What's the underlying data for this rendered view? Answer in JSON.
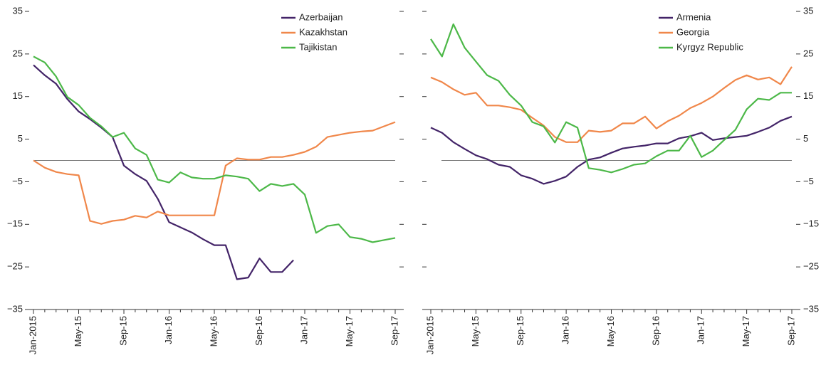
{
  "chart_data": [
    {
      "type": "line",
      "legend": "upper right",
      "yaxis_position": "left",
      "reference_line": 0,
      "categories": [
        "Jan-2015",
        null,
        null,
        null,
        "May-15",
        null,
        null,
        null,
        "Sep-15",
        null,
        null,
        null,
        "Jan-16",
        null,
        null,
        null,
        "May-16",
        null,
        null,
        null,
        "Sep-16",
        null,
        null,
        null,
        "Jan-17",
        null,
        null,
        null,
        "May-17",
        null,
        null,
        null,
        "Sep-17"
      ],
      "ylim": [
        -35,
        35
      ],
      "yticks": [
        {
          "value": -35,
          "label": "−35"
        },
        {
          "value": -25,
          "label": "−25"
        },
        {
          "value": -15,
          "label": "−15"
        },
        {
          "value": -5,
          "label": "−5"
        },
        5,
        15,
        25,
        35
      ],
      "series": [
        {
          "name": "Azerbaijan",
          "color": "#432468",
          "values": [
            22.4,
            20,
            18,
            14.4,
            11.5,
            9.7,
            7.7,
            5.5,
            -1.2,
            -3.2,
            -4.8,
            -9,
            -14.5,
            -15.7,
            -16.9,
            -18.5,
            -19.9,
            -19.9,
            -27.9,
            -27.5,
            -23,
            -26.2,
            -26.2,
            -23.4,
            null,
            null,
            null,
            null,
            null,
            null,
            null,
            null,
            null
          ]
        },
        {
          "name": "Kazakhstan",
          "color": "#f0874a",
          "values": [
            0,
            -1.7,
            -2.7,
            -3.2,
            -3.5,
            -14.2,
            -14.9,
            -14.2,
            -13.9,
            -13,
            -13.4,
            -12,
            -12.9,
            -12.9,
            -12.9,
            -12.9,
            -12.9,
            -1.2,
            0.5,
            0.2,
            0.2,
            0.8,
            0.8,
            1.3,
            2,
            3.2,
            5.5,
            6,
            6.5,
            6.8,
            7,
            8,
            9
          ]
        },
        {
          "name": "Tajikistan",
          "color": "#4cb848",
          "values": [
            24.4,
            23,
            19.7,
            14.9,
            13,
            10,
            8,
            5.5,
            6.5,
            2.8,
            1.3,
            -4.5,
            -5.2,
            -2.8,
            -4,
            -4.3,
            -4.3,
            -3.5,
            -3.8,
            -4.3,
            -7.2,
            -5.5,
            -6,
            -5.5,
            -8,
            -17,
            -15.4,
            -15,
            -18,
            -18.4,
            -19.2,
            -18.7,
            -18.2
          ]
        }
      ]
    },
    {
      "type": "line",
      "legend": "upper right",
      "yaxis_position": "right",
      "reference_line": 0,
      "categories": [
        "Jan-2015",
        null,
        null,
        null,
        "May-15",
        null,
        null,
        null,
        "Sep-15",
        null,
        null,
        null,
        "Jan-16",
        null,
        null,
        null,
        "May-16",
        null,
        null,
        null,
        "Sep-16",
        null,
        null,
        null,
        "Jan-17",
        null,
        null,
        null,
        "May-17",
        null,
        null,
        null,
        "Sep-17"
      ],
      "ylim": [
        -35,
        35
      ],
      "yticks": [
        {
          "value": -35,
          "label": "−35"
        },
        {
          "value": -25,
          "label": "−25"
        },
        {
          "value": -15,
          "label": "−15"
        },
        {
          "value": -5,
          "label": "−5"
        },
        5,
        15,
        25,
        35
      ],
      "series": [
        {
          "name": "Armenia",
          "color": "#432468",
          "values": [
            7.7,
            6.5,
            4.3,
            2.7,
            1.2,
            0.3,
            -1,
            -1.5,
            -3.5,
            -4.3,
            -5.5,
            -4.8,
            -3.8,
            -1.5,
            0.2,
            0.7,
            1.8,
            2.8,
            3.2,
            3.5,
            4,
            4,
            5.2,
            5.7,
            6.5,
            4.8,
            5.2,
            5.5,
            5.8,
            6.7,
            7.7,
            9.3,
            10.3
          ]
        },
        {
          "name": "Georgia",
          "color": "#f0874a",
          "values": [
            19.5,
            18.4,
            16.7,
            15.4,
            15.9,
            12.9,
            12.9,
            12.5,
            11.9,
            10,
            8.2,
            5.5,
            4.3,
            4.3,
            7,
            6.7,
            7,
            8.7,
            8.7,
            10.3,
            7.5,
            9.2,
            10.5,
            12.3,
            13.5,
            15,
            17,
            18.9,
            20,
            19,
            19.5,
            17.9,
            22
          ]
        },
        {
          "name": "Kyrgyz Republic",
          "color": "#4cb848",
          "values": [
            28.5,
            24.4,
            32,
            26.5,
            23.2,
            20,
            18.7,
            15.4,
            12.9,
            9,
            8,
            4.2,
            9,
            7.7,
            -1.8,
            -2.2,
            -2.8,
            -2,
            -1,
            -0.7,
            1,
            2.3,
            2.3,
            5.8,
            0.8,
            2.3,
            4.8,
            7.2,
            12,
            14.5,
            14.2,
            15.9,
            15.9
          ]
        }
      ]
    }
  ]
}
